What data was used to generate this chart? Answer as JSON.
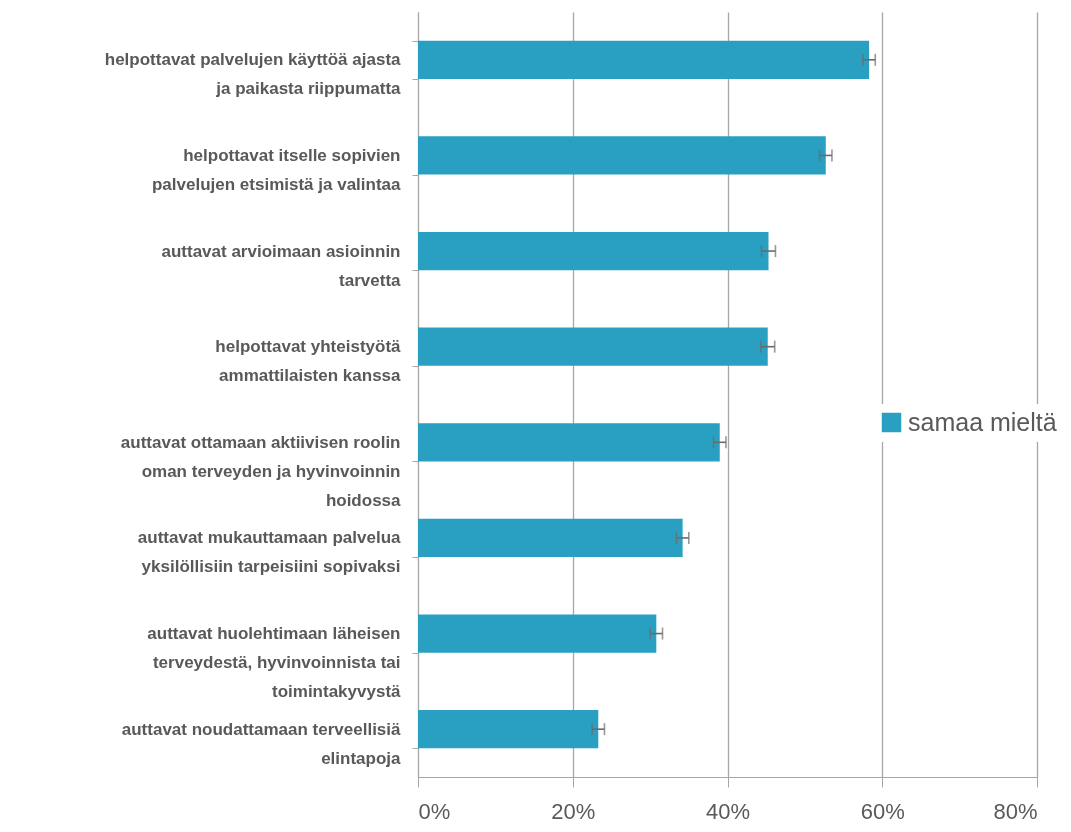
{
  "chart_data": {
    "type": "bar",
    "orientation": "horizontal",
    "categories": [
      "helpottavat palvelujen käyttöä ajasta ja paikasta riippumatta",
      "helpottavat itselle sopivien palvelujen etsimistä ja valintaa",
      "auttavat arvioimaan asioinnin tarvetta",
      "helpottavat yhteistyötä ammattilaisten kanssa",
      "auttavat ottamaan aktiivisen roolin oman terveyden ja hyvinvoinnin hoidossa",
      "auttavat mukauttamaan palvelua yksilöllisiin tarpeisiini sopivaksi",
      "auttavat huolehtimaan läheisen terveydestä, hyvinvoinnista tai toimintakyvystä",
      "auttavat noudattamaan terveellisiä elintapoja"
    ],
    "series": [
      {
        "name": "samaa mieltä",
        "color": "#29a0c2",
        "values": [
          58.3,
          52.7,
          45.3,
          45.2,
          39.0,
          34.2,
          30.8,
          23.3
        ],
        "errors": [
          0.8,
          0.8,
          0.9,
          0.9,
          0.8,
          0.8,
          0.8,
          0.8
        ]
      }
    ],
    "xlim": [
      0,
      80
    ],
    "xticks": [
      {
        "value": 0,
        "label": "0%"
      },
      {
        "value": 20,
        "label": "20%"
      },
      {
        "value": 40,
        "label": "40%"
      },
      {
        "value": 60,
        "label": "60%"
      },
      {
        "value": 80,
        "label": "80%"
      }
    ],
    "grid": "x",
    "legend": "right"
  }
}
